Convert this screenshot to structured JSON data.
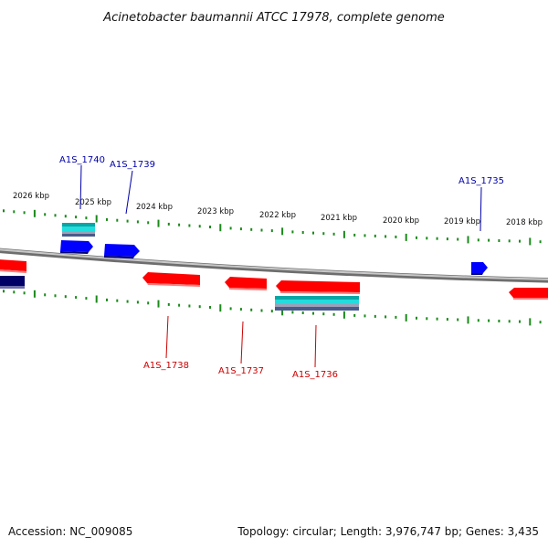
{
  "title": "Acinetobacter baumannii ATCC 17978, complete genome",
  "accession": "Accession: NC_009085",
  "summary": "Topology: circular; Length: 3,976,747 bp; Genes: 3,435",
  "colors": {
    "forward_strand": "#0000ff",
    "reverse_strand": "#ff0000",
    "rna_feature": "#00c8c8",
    "backbone": "#8a8a8a",
    "tick": "#1a8a1a",
    "forward_label": "#0000aa",
    "reverse_label": "#cc0000"
  },
  "ruler": {
    "ticks": [
      {
        "label": "2026 kbp"
      },
      {
        "label": "2025 kbp"
      },
      {
        "label": "2024 kbp"
      },
      {
        "label": "2023 kbp"
      },
      {
        "label": "2022 kbp"
      },
      {
        "label": "2021 kbp"
      },
      {
        "label": "2020 kbp"
      },
      {
        "label": "2019 kbp"
      },
      {
        "label": "2018 kbp"
      }
    ]
  },
  "genes": [
    {
      "label": "A1S_1740",
      "strand": "forward"
    },
    {
      "label": "A1S_1739",
      "strand": "forward"
    },
    {
      "label": "A1S_1735",
      "strand": "forward"
    },
    {
      "label": "A1S_1738",
      "strand": "reverse"
    },
    {
      "label": "A1S_1737",
      "strand": "reverse"
    },
    {
      "label": "A1S_1736",
      "strand": "reverse"
    }
  ]
}
